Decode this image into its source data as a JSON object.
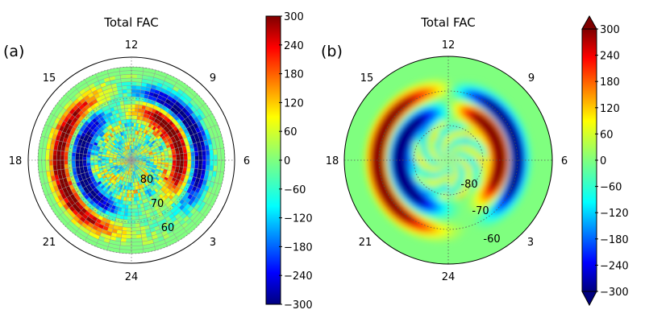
{
  "chart_data": [
    {
      "panel_label": "(a)",
      "type": "heatmap",
      "projection": "polar",
      "title": "Total FAC",
      "mlt_labels": [
        "12",
        "9",
        "6",
        "3",
        "24",
        "21",
        "18",
        "15"
      ],
      "lat_labels": [
        "80",
        "70",
        "60"
      ],
      "colorbar": {
        "min": -300,
        "max": 300,
        "ticks": [
          "300",
          "240",
          "180",
          "120",
          "60",
          "0",
          "−60",
          "−120",
          "−180",
          "−240",
          "−300"
        ],
        "colormap": "jet",
        "extend": false
      },
      "grid_style": "gridded-cells",
      "features": [
        {
          "region": "dawn (MLT 3–9), lat 70–75",
          "sign": "positive",
          "value": 300
        },
        {
          "region": "dawn (MLT 3–9), lat 65–70",
          "sign": "negative",
          "value": -300
        },
        {
          "region": "dusk (MLT 15–21), lat 68–75",
          "sign": "negative",
          "value": -300
        },
        {
          "region": "dusk (MLT 15–21), lat 63–68",
          "sign": "positive",
          "value": 300
        },
        {
          "region": "polar cap, lat > 75",
          "sign": "mixed-weak",
          "value": 60
        },
        {
          "region": "equatorward of 60",
          "sign": "near-zero",
          "value": 0
        }
      ]
    },
    {
      "panel_label": "(b)",
      "type": "heatmap",
      "projection": "polar",
      "title": "Total FAC",
      "mlt_labels": [
        "12",
        "9",
        "6",
        "3",
        "24",
        "21",
        "18",
        "15"
      ],
      "lat_labels": [
        "-80",
        "-70",
        "-60"
      ],
      "colorbar": {
        "min": -300,
        "max": 300,
        "ticks": [
          "300",
          "240",
          "180",
          "120",
          "60",
          "0",
          "−60",
          "−120",
          "−180",
          "−240",
          "−300"
        ],
        "colormap": "jet",
        "extend": true
      },
      "grid_style": "smooth",
      "features": [
        {
          "region": "dawn (MLT 3–11), lat -70 to -76",
          "sign": "positive",
          "value": 300
        },
        {
          "region": "dawn (MLT 3–10), lat -64 to -70",
          "sign": "negative",
          "value": -300
        },
        {
          "region": "dusk (MLT 13–23), lat -68 to -76",
          "sign": "negative",
          "value": -300
        },
        {
          "region": "dusk (MLT 14–23), lat -62 to -68",
          "sign": "positive",
          "value": 300
        },
        {
          "region": "polar cap, lat < -76",
          "sign": "mixed-weak",
          "value": 60
        },
        {
          "region": "equatorward of -60",
          "sign": "near-zero",
          "value": 0
        }
      ]
    }
  ]
}
